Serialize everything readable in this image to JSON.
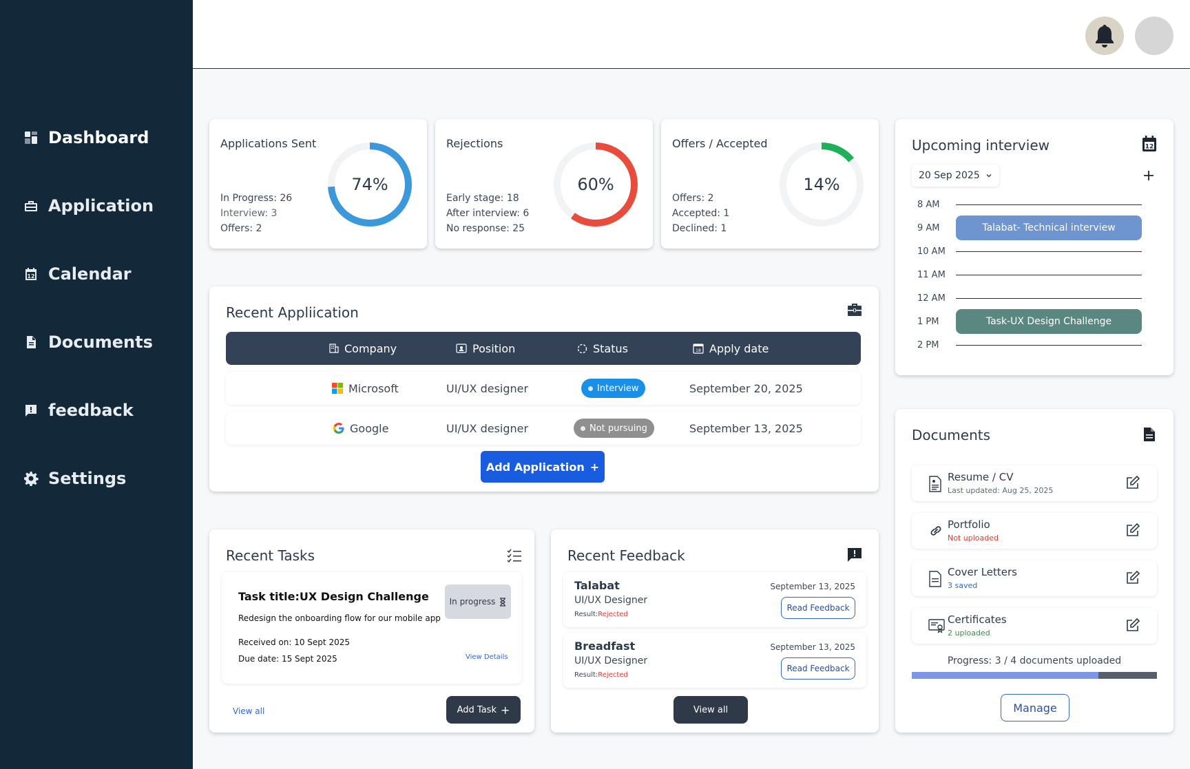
{
  "sidebar": {
    "items": [
      {
        "label": "Dashboard",
        "icon": "dashboard-icon",
        "active": true
      },
      {
        "label": "Application",
        "icon": "briefcase-icon"
      },
      {
        "label": "Calendar",
        "icon": "calendar-icon"
      },
      {
        "label": "Documents",
        "icon": "document-icon"
      },
      {
        "label": "feedback",
        "icon": "feedback-icon"
      },
      {
        "label": "Settings",
        "icon": "gear-icon"
      }
    ]
  },
  "stats": {
    "applications": {
      "title": "Applications Sent",
      "percent_label": "74%",
      "percent": 74,
      "color": "#3a98db",
      "lines": [
        {
          "label": "In Progress:",
          "value": "26"
        },
        {
          "label": "Interview:",
          "value": "3"
        },
        {
          "label": "Offers:",
          "value": "2"
        }
      ]
    },
    "rejections": {
      "title": "Rejections",
      "percent_label": "60%",
      "percent": 60,
      "color": "#e84c3d",
      "lines": [
        {
          "label": "Early stage:",
          "value": "18"
        },
        {
          "label": "After interview:",
          "value": "6"
        },
        {
          "label": "No response:",
          "value": "25"
        }
      ]
    },
    "offers": {
      "title": "Offers / Accepted",
      "percent_label": "14%",
      "percent": 14,
      "color": "#1fb15a",
      "lines": [
        {
          "label": "Offers:",
          "value": "2"
        },
        {
          "label": "Accepted:",
          "value": "1"
        },
        {
          "label": "Declined:",
          "value": "1"
        }
      ]
    }
  },
  "recent_applications": {
    "title": "Recent Appliication",
    "columns": [
      "Company",
      "Position",
      "Status",
      "Apply date"
    ],
    "rows": [
      {
        "company": "Microsoft",
        "position": "UI/UX designer",
        "status": "Interview",
        "status_color": "#1a8fe8",
        "date": "September 20, 2025"
      },
      {
        "company": "Google",
        "position": "UI/UX designer",
        "status": "Not pursuing",
        "status_color": "#8f8f8f",
        "date": "September 13, 2025"
      }
    ],
    "add_button": "Add Application"
  },
  "upcoming": {
    "title": "Upcoming interview",
    "date": "20 Sep 2025",
    "times": [
      "8 AM",
      "9 AM",
      "10 AM",
      "11 AM",
      "12 AM",
      "1 PM",
      "2 PM"
    ],
    "events": [
      {
        "time": "9 AM",
        "label": "Talabat- Technical interview",
        "color": "#6e95cf"
      },
      {
        "time": "1 PM",
        "label": "Task-UX Design Challenge",
        "color": "#5a8880"
      }
    ]
  },
  "documents": {
    "title": "Documents",
    "items": [
      {
        "name": "Resume / CV",
        "sub": "Last updated: Aug 25, 2025",
        "sub_color": "#5e6975",
        "icon": "resume-icon"
      },
      {
        "name": "Portfolio",
        "sub": "Not uploaded",
        "sub_color": "#e53935",
        "icon": "link-icon"
      },
      {
        "name": "Cover Letters",
        "sub": "3 saved",
        "sub_color": "#2f67d8",
        "icon": "file-icon"
      },
      {
        "name": "Certificates",
        "sub": "2 uploaded",
        "sub_color": "#3d8a4b",
        "icon": "certificate-icon"
      }
    ],
    "progress_label": "Progress: 3 / 4 documents uploaded",
    "progress": 0.76,
    "manage_button": "Manage"
  },
  "tasks": {
    "title": "Recent Tasks",
    "task": {
      "title": "Task title:UX Design Challenge",
      "status": "In progress",
      "description": "Redesign the onboarding flow for our mobile app",
      "received": "Received on: 10 Sept 2025",
      "due": "Due date: 15 Sept 2025",
      "details_link": "View Details"
    },
    "view_all": "View all",
    "add_button": "Add Task"
  },
  "feedback": {
    "title": "Recent Feedback",
    "items": [
      {
        "company": "Talabat",
        "role": "UI/UX Designer",
        "result_label": "Result:",
        "result": "Rejected",
        "date": "September 13, 2025",
        "button": "Read Feedback"
      },
      {
        "company": "Breadfast",
        "role": "UI/UX Designer",
        "result_label": "Result:",
        "result": "Rejected",
        "date": "September 13, 2025",
        "button": "Read Feedback"
      }
    ],
    "view_all": "View all"
  }
}
